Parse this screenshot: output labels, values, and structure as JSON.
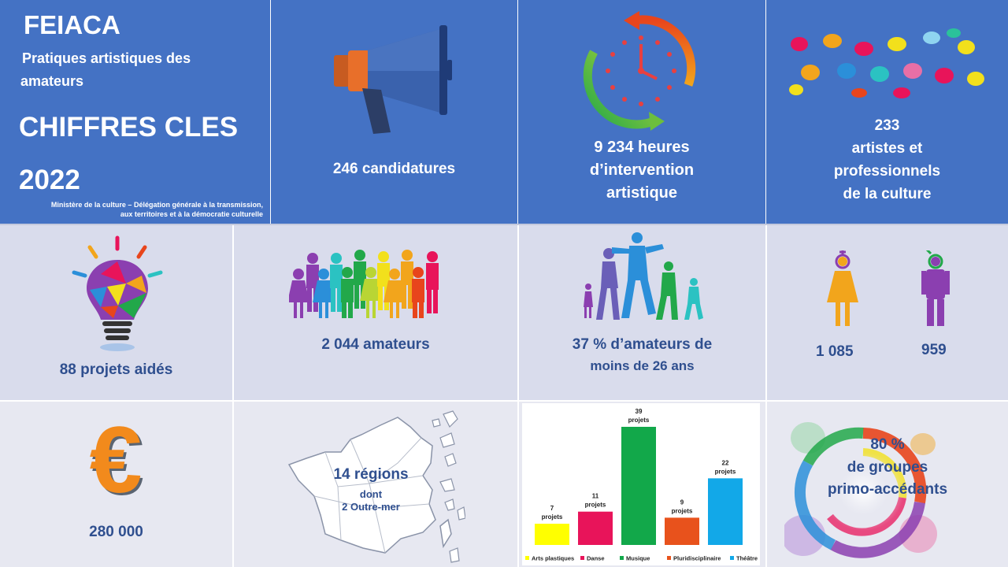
{
  "header": {
    "brand": "FEIACA",
    "subtitle_line1": "Pratiques artistiques des",
    "subtitle_line2": "amateurs",
    "heading": "CHIFFRES CLES",
    "year": "2022",
    "ministry_line1": "Ministère de la culture – Délégation générale à la transmission,",
    "ministry_line2": "aux territoires et à la démocratie culturelle"
  },
  "stats": {
    "candidatures": "246 candidatures",
    "heures_line1": "9 234 heures",
    "heures_line2": "d’intervention",
    "heures_line3": "artistique",
    "artistes_line1": "233",
    "artistes_line2": "artistes et",
    "artistes_line3": "professionnels",
    "artistes_line4": "de la culture",
    "projets": "88 projets aidés",
    "amateurs": "2 044 amateurs",
    "jeunes_line1": "37 % d’amateurs de",
    "jeunes_line2": "moins de 26 ans",
    "female_count": "1 085",
    "male_count": "959",
    "budget": "280 000",
    "regions_line1": "14 régions",
    "regions_line2": "dont",
    "regions_line3": "2 Outre-mer",
    "primo_line1": "80 %",
    "primo_line2": "de groupes",
    "primo_line3": "primo-accédants"
  },
  "icons": {
    "euro_symbol": "€",
    "megaphone": "megaphone-icon",
    "clock": "clock-cycle-icon",
    "hands": "colorful-hands-icon",
    "bulb": "lightbulb-icon",
    "crowd": "crowd-icon",
    "runners": "running-family-icon",
    "woman": "woman-icon",
    "man": "man-icon",
    "map": "france-map-icon",
    "swirl": "color-swirl-icon"
  },
  "chart_data": {
    "type": "bar",
    "categories": [
      "Arts plastiques",
      "Danse",
      "Musique",
      "Pluridisciplinaire",
      "Théâtre"
    ],
    "values": [
      7,
      11,
      39,
      9,
      22
    ],
    "data_labels": [
      "7 projets",
      "11 projets",
      "39 projets",
      "9 projets",
      "22 projets"
    ],
    "label_unit": "projets",
    "colors": [
      "#ffff00",
      "#e8145a",
      "#12a84a",
      "#e8521c",
      "#12a8e8"
    ],
    "legend_position": "bottom",
    "ylim": [
      0,
      39
    ],
    "grid": false
  }
}
